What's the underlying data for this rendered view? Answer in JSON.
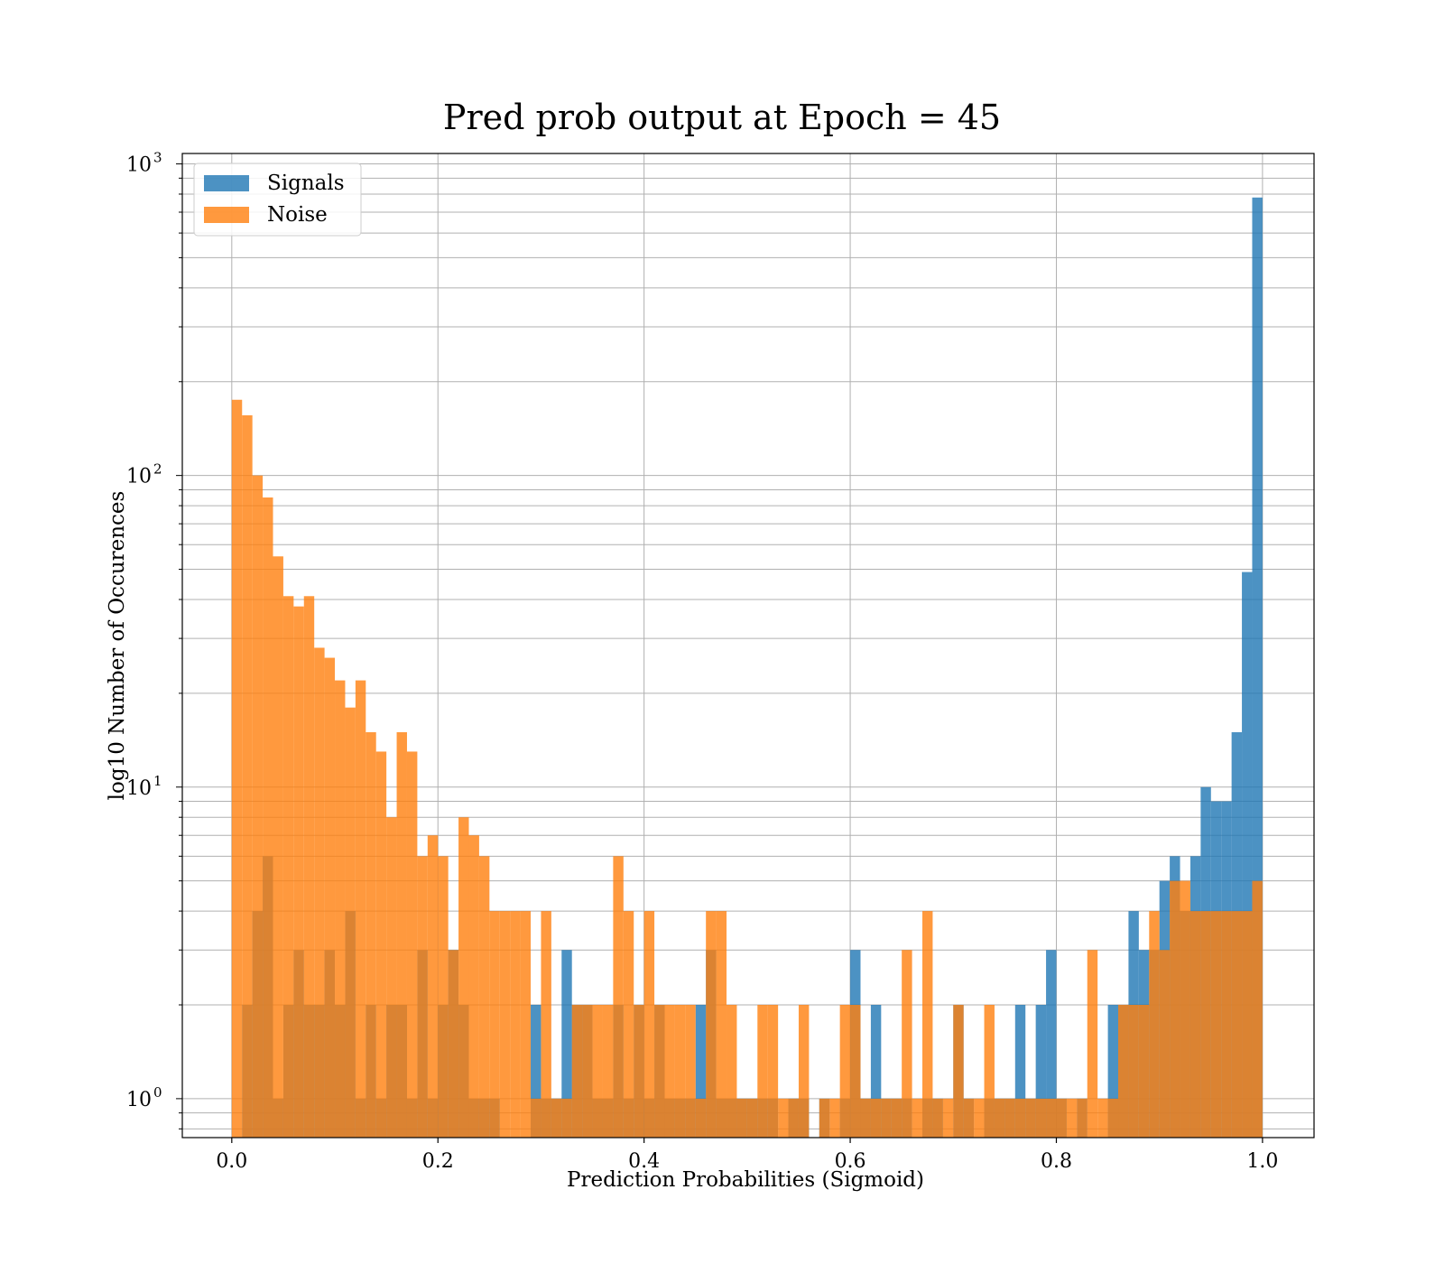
{
  "chart_data": {
    "type": "bar",
    "title": "Pred prob output at Epoch = 45",
    "xlabel": "Prediction Probabilities (Sigmoid)",
    "ylabel": "log10 Number of Occurences",
    "yscale": "log",
    "xlim": [
      -0.048,
      1.05
    ],
    "ylim": [
      0.75,
      1080
    ],
    "grid": true,
    "legend": "top-left",
    "x_ticks": [
      "0.0",
      "0.2",
      "0.4",
      "0.6",
      "0.8",
      "1.0"
    ],
    "x_tick_values": [
      0.0,
      0.2,
      0.4,
      0.6,
      0.8,
      1.0
    ],
    "y_ticks": [
      {
        "value": 1,
        "base": "10",
        "exp": "0"
      },
      {
        "value": 10,
        "base": "10",
        "exp": "1"
      },
      {
        "value": 100,
        "base": "10",
        "exp": "2"
      },
      {
        "value": 1000,
        "base": "10",
        "exp": "3"
      }
    ],
    "bin_range": [
      0.0,
      1.0
    ],
    "bin_count": 100,
    "series": [
      {
        "name": "Signals",
        "color": "#1f77b4",
        "values": [
          0,
          2,
          4,
          6,
          1,
          2,
          3,
          2,
          2,
          3,
          2,
          4,
          1,
          2,
          1,
          2,
          2,
          1,
          3,
          1,
          2,
          3,
          2,
          1,
          1,
          1,
          0,
          0,
          0,
          2,
          1,
          1,
          3,
          2,
          2,
          1,
          1,
          2,
          1,
          2,
          1,
          2,
          1,
          1,
          1,
          2,
          3,
          1,
          1,
          1,
          1,
          1,
          1,
          0,
          1,
          1,
          0,
          1,
          0,
          1,
          3,
          1,
          2,
          1,
          1,
          1,
          0,
          1,
          1,
          0,
          2,
          1,
          0,
          1,
          1,
          1,
          2,
          1,
          2,
          3,
          1,
          0,
          1,
          0,
          0,
          2,
          2,
          4,
          3,
          3,
          5,
          6,
          4,
          6,
          10,
          9,
          9,
          15,
          49,
          780
        ]
      },
      {
        "name": "Noise",
        "color": "#ff7f0e",
        "values": [
          175,
          156,
          100,
          85,
          55,
          41,
          38,
          41,
          28,
          26,
          22,
          18,
          22,
          15,
          13,
          8,
          15,
          13,
          6,
          7,
          6,
          3,
          8,
          7,
          6,
          4,
          4,
          4,
          4,
          1,
          4,
          1,
          1,
          2,
          2,
          2,
          2,
          6,
          4,
          2,
          4,
          2,
          2,
          2,
          2,
          1,
          4,
          4,
          2,
          1,
          1,
          2,
          2,
          1,
          1,
          2,
          0,
          1,
          1,
          2,
          2,
          1,
          1,
          1,
          1,
          3,
          1,
          4,
          1,
          1,
          2,
          1,
          1,
          2,
          1,
          1,
          1,
          1,
          1,
          1,
          1,
          1,
          1,
          3,
          1,
          1,
          2,
          2,
          2,
          4,
          3,
          5,
          5,
          4,
          4,
          4,
          4,
          4,
          4,
          5
        ]
      }
    ]
  }
}
